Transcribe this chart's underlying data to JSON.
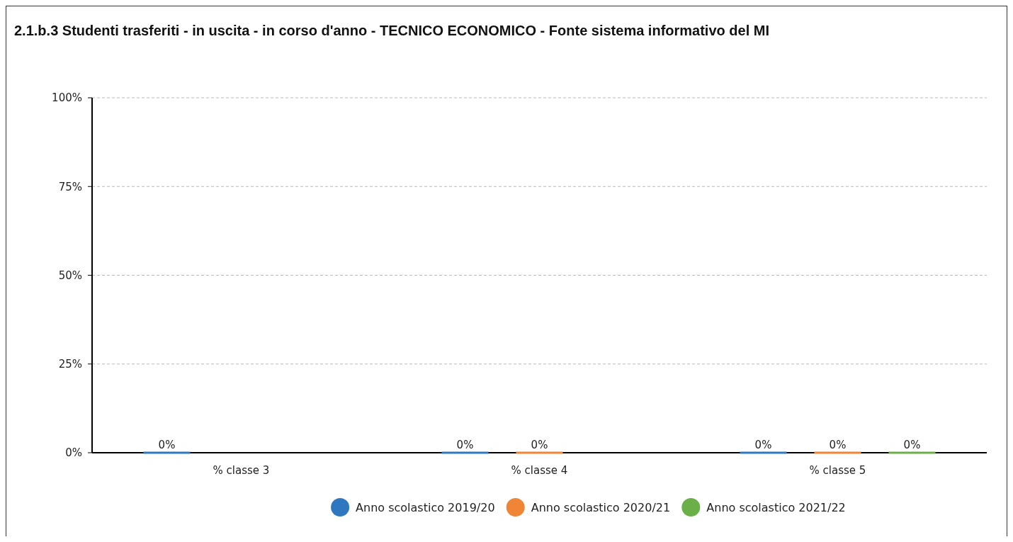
{
  "chart_data": {
    "type": "bar",
    "title": "2.1.b.3 Studenti trasferiti - in uscita - in corso d'anno - TECNICO ECONOMICO - Fonte sistema informativo del MI",
    "categories": [
      "% classe 3",
      "% classe 4",
      "% classe 5"
    ],
    "series": [
      {
        "name": "Anno scolastico 2019/20",
        "color": "#2f78bf",
        "values": [
          0,
          0,
          0
        ],
        "value_labels": [
          "0%",
          "0%",
          "0%"
        ]
      },
      {
        "name": "Anno scolastico 2020/21",
        "color": "#ef8535",
        "values": [
          null,
          0,
          0
        ],
        "value_labels": [
          null,
          "0%",
          "0%"
        ]
      },
      {
        "name": "Anno scolastico 2021/22",
        "color": "#6aaf48",
        "values": [
          null,
          null,
          0
        ],
        "value_labels": [
          null,
          null,
          "0%"
        ]
      }
    ],
    "ylim": [
      0,
      100
    ],
    "yticks": [
      {
        "value": 0,
        "label": "0%"
      },
      {
        "value": 25,
        "label": "25%"
      },
      {
        "value": 50,
        "label": "50%"
      },
      {
        "value": 75,
        "label": "75%"
      },
      {
        "value": 100,
        "label": "100%"
      }
    ],
    "grid": "y",
    "legend": "bottom"
  }
}
